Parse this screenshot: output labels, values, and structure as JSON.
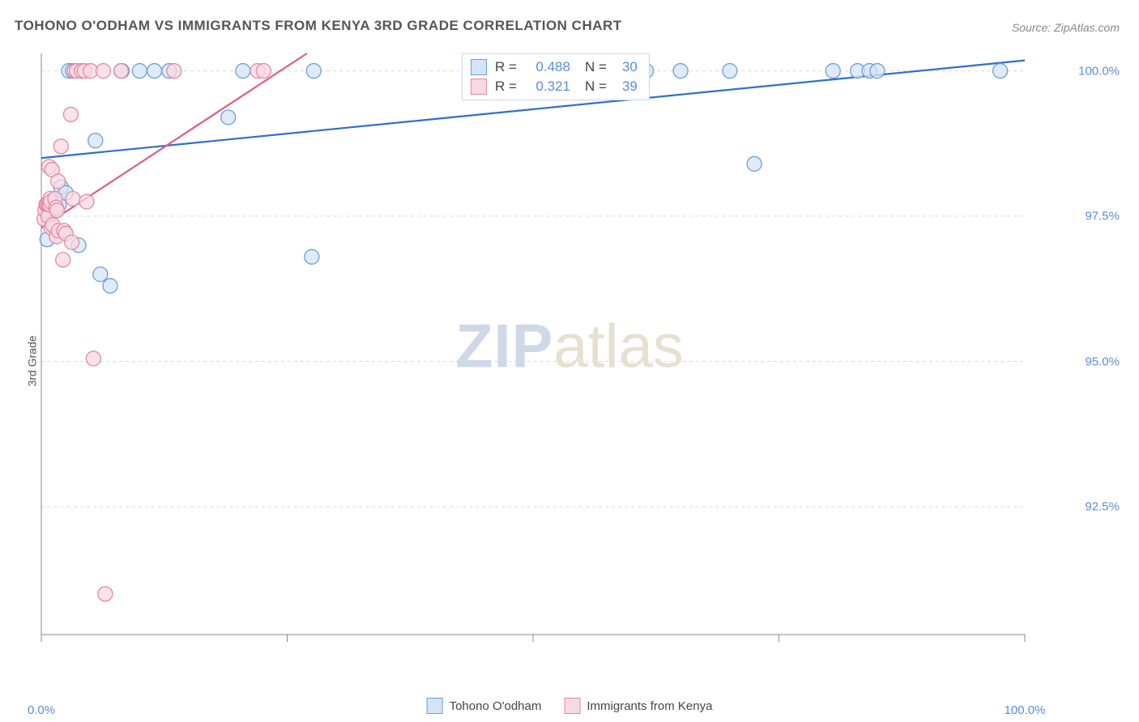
{
  "title": "TOHONO O'ODHAM VS IMMIGRANTS FROM KENYA 3RD GRADE CORRELATION CHART",
  "source": "Source: ZipAtlas.com",
  "ylabel": "3rd Grade",
  "watermark": {
    "part1": "ZIP",
    "part2": "atlas"
  },
  "chart": {
    "type": "scatter",
    "background_color": "#ffffff",
    "grid_color": "#d9d9d9",
    "axis_color": "#888888",
    "xlim": [
      0,
      100
    ],
    "ylim": [
      90.3,
      100.3
    ],
    "yticks": [
      {
        "v": 92.5,
        "label": "92.5%"
      },
      {
        "v": 95.0,
        "label": "95.0%"
      },
      {
        "v": 97.5,
        "label": "97.5%"
      },
      {
        "v": 100.0,
        "label": "100.0%"
      }
    ],
    "xticks": [
      {
        "v": 0,
        "label": "0.0%"
      },
      {
        "v": 50,
        "label": ""
      },
      {
        "v": 100,
        "label": "100.0%"
      }
    ],
    "xtick_minor": [
      25,
      75
    ],
    "marker_radius": 9,
    "marker_stroke_width": 1.3,
    "line_width": 2.2
  },
  "series": [
    {
      "name": "Tohono O'odham",
      "fill": "#d5e3f7",
      "stroke": "#6a9edb",
      "line_color": "#2f6fd0",
      "points": [
        [
          0.6,
          97.1
        ],
        [
          1.2,
          97.6
        ],
        [
          1.5,
          97.6
        ],
        [
          1.8,
          97.7
        ],
        [
          2.0,
          98.0
        ],
        [
          2.5,
          97.9
        ],
        [
          2.8,
          100.0
        ],
        [
          3.2,
          100.0
        ],
        [
          3.8,
          97.0
        ],
        [
          4.2,
          100.0
        ],
        [
          5.5,
          98.8
        ],
        [
          6.0,
          96.5
        ],
        [
          7.0,
          96.3
        ],
        [
          8.2,
          100.0
        ],
        [
          10.0,
          100.0
        ],
        [
          11.5,
          100.0
        ],
        [
          13.0,
          100.0
        ],
        [
          19.0,
          99.2
        ],
        [
          20.5,
          100.0
        ],
        [
          27.5,
          96.8
        ],
        [
          27.7,
          100.0
        ],
        [
          61.5,
          100.0
        ],
        [
          65.0,
          100.0
        ],
        [
          70.0,
          100.0
        ],
        [
          72.5,
          98.4
        ],
        [
          80.5,
          100.0
        ],
        [
          83.0,
          100.0
        ],
        [
          84.2,
          100.0
        ],
        [
          85.0,
          100.0
        ],
        [
          97.5,
          100.0
        ]
      ],
      "trend": {
        "x1": 0,
        "y1": 98.5,
        "x2": 100,
        "y2": 100.18
      }
    },
    {
      "name": "Immigrants from Kenya",
      "fill": "#f7d9e1",
      "stroke": "#e389a4",
      "line_color": "#e05a8a",
      "points": [
        [
          0.3,
          97.45
        ],
        [
          0.4,
          97.6
        ],
        [
          0.5,
          97.7
        ],
        [
          0.6,
          97.7
        ],
        [
          0.7,
          97.5
        ],
        [
          0.75,
          97.7
        ],
        [
          0.85,
          97.7
        ],
        [
          0.8,
          98.35
        ],
        [
          0.9,
          97.8
        ],
        [
          0.95,
          97.75
        ],
        [
          1.0,
          97.3
        ],
        [
          1.1,
          98.3
        ],
        [
          1.15,
          97.35
        ],
        [
          1.4,
          97.8
        ],
        [
          1.5,
          97.65
        ],
        [
          1.55,
          97.15
        ],
        [
          1.6,
          97.6
        ],
        [
          1.7,
          98.1
        ],
        [
          1.75,
          97.25
        ],
        [
          2.0,
          98.7
        ],
        [
          2.2,
          96.75
        ],
        [
          2.3,
          97.25
        ],
        [
          2.5,
          97.2
        ],
        [
          3.0,
          99.25
        ],
        [
          3.1,
          97.05
        ],
        [
          3.2,
          97.8
        ],
        [
          3.4,
          100.0
        ],
        [
          3.6,
          100.0
        ],
        [
          4.1,
          100.0
        ],
        [
          4.4,
          100.0
        ],
        [
          4.6,
          97.75
        ],
        [
          5.0,
          100.0
        ],
        [
          5.3,
          95.05
        ],
        [
          6.3,
          100.0
        ],
        [
          6.5,
          91.0
        ],
        [
          8.1,
          100.0
        ],
        [
          13.5,
          100.0
        ],
        [
          22.0,
          100.0
        ],
        [
          22.6,
          100.0
        ]
      ],
      "trend": {
        "x1": 0,
        "y1": 97.3,
        "x2": 27,
        "y2": 100.3
      }
    }
  ],
  "stats_box": {
    "rows": [
      {
        "swatch_fill": "#d5e3f7",
        "swatch_stroke": "#6a9edb",
        "r_label": "R =",
        "r": "0.488",
        "n_label": "N =",
        "n": "30"
      },
      {
        "swatch_fill": "#f7d9e1",
        "swatch_stroke": "#e389a4",
        "r_label": "R =",
        "r": "0.321",
        "n_label": "N =",
        "n": "39"
      }
    ]
  },
  "bottom_legend": [
    {
      "swatch_fill": "#d5e3f7",
      "swatch_stroke": "#6a9edb",
      "label": "Tohono O'odham"
    },
    {
      "swatch_fill": "#f7d9e1",
      "swatch_stroke": "#e389a4",
      "label": "Immigrants from Kenya"
    }
  ]
}
